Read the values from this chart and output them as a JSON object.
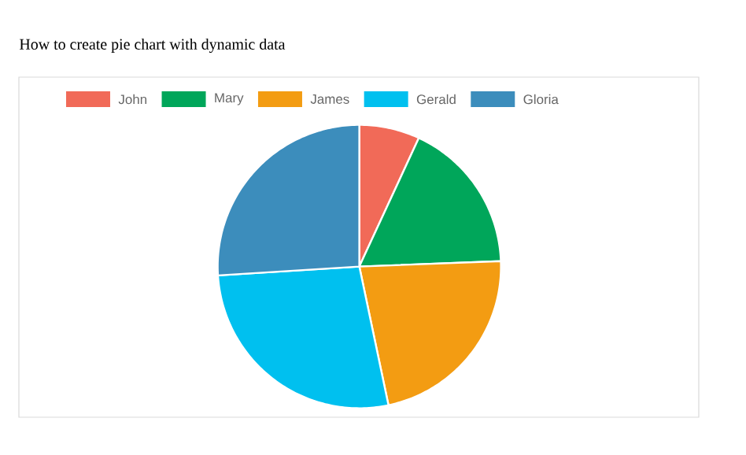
{
  "chart_data": {
    "type": "pie",
    "title": "How to create pie chart with dynamic data",
    "categories": [
      "John",
      "Mary",
      "James",
      "Gerald",
      "Gloria"
    ],
    "values": [
      6.9,
      17.5,
      22.3,
      27.3,
      26.0
    ],
    "colors": [
      "#f16a58",
      "#00a65a",
      "#f39c12",
      "#00c0ef",
      "#3c8dbc"
    ],
    "legend": "top"
  }
}
